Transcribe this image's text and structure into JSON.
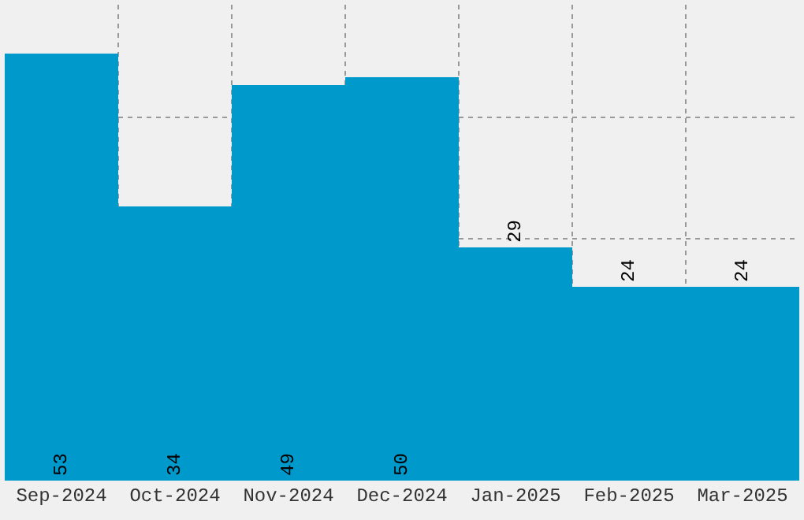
{
  "chart_data": {
    "type": "bar",
    "categories": [
      "Sep-2024",
      "Oct-2024",
      "Nov-2024",
      "Dec-2024",
      "Jan-2025",
      "Feb-2025",
      "Mar-2025"
    ],
    "values": [
      53,
      34,
      49,
      50,
      29,
      24,
      24
    ],
    "color": "#0099cc",
    "data_labels": true,
    "grid": true,
    "ylim": [
      0,
      59
    ],
    "yticks": [
      {
        "value": 30,
        "label": null
      },
      {
        "value": 45,
        "label": null
      }
    ],
    "tick_labels": "x",
    "legend": false
  }
}
